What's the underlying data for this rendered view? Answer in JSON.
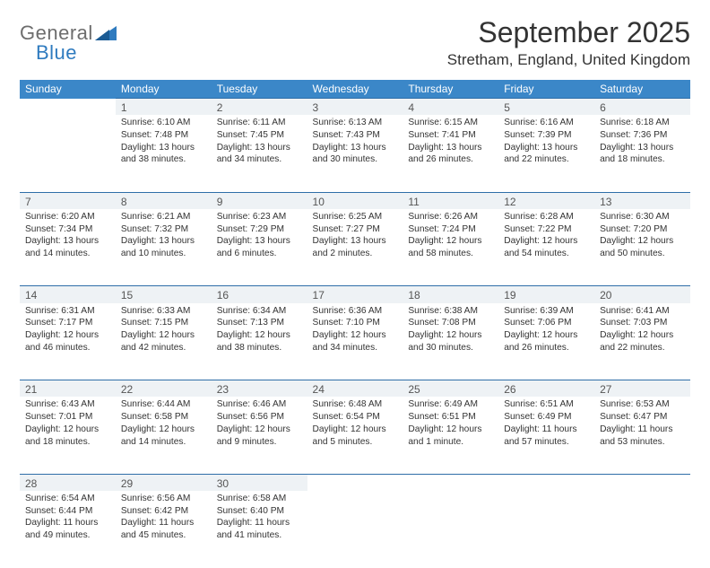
{
  "logo": {
    "text1": "General",
    "text2": "Blue"
  },
  "title": "September 2025",
  "location": "Stretham, England, United Kingdom",
  "colors": {
    "header_bg": "#3b87c8",
    "header_text": "#ffffff",
    "daynum_bg": "#eef2f5",
    "row_border": "#2f6ea8",
    "body_text": "#333333",
    "logo_gray": "#6d6d6d",
    "logo_blue": "#2f7bbf"
  },
  "weekdays": [
    "Sunday",
    "Monday",
    "Tuesday",
    "Wednesday",
    "Thursday",
    "Friday",
    "Saturday"
  ],
  "weeks": [
    [
      null,
      {
        "n": "1",
        "sr": "Sunrise: 6:10 AM",
        "ss": "Sunset: 7:48 PM",
        "d1": "Daylight: 13 hours",
        "d2": "and 38 minutes."
      },
      {
        "n": "2",
        "sr": "Sunrise: 6:11 AM",
        "ss": "Sunset: 7:45 PM",
        "d1": "Daylight: 13 hours",
        "d2": "and 34 minutes."
      },
      {
        "n": "3",
        "sr": "Sunrise: 6:13 AM",
        "ss": "Sunset: 7:43 PM",
        "d1": "Daylight: 13 hours",
        "d2": "and 30 minutes."
      },
      {
        "n": "4",
        "sr": "Sunrise: 6:15 AM",
        "ss": "Sunset: 7:41 PM",
        "d1": "Daylight: 13 hours",
        "d2": "and 26 minutes."
      },
      {
        "n": "5",
        "sr": "Sunrise: 6:16 AM",
        "ss": "Sunset: 7:39 PM",
        "d1": "Daylight: 13 hours",
        "d2": "and 22 minutes."
      },
      {
        "n": "6",
        "sr": "Sunrise: 6:18 AM",
        "ss": "Sunset: 7:36 PM",
        "d1": "Daylight: 13 hours",
        "d2": "and 18 minutes."
      }
    ],
    [
      {
        "n": "7",
        "sr": "Sunrise: 6:20 AM",
        "ss": "Sunset: 7:34 PM",
        "d1": "Daylight: 13 hours",
        "d2": "and 14 minutes."
      },
      {
        "n": "8",
        "sr": "Sunrise: 6:21 AM",
        "ss": "Sunset: 7:32 PM",
        "d1": "Daylight: 13 hours",
        "d2": "and 10 minutes."
      },
      {
        "n": "9",
        "sr": "Sunrise: 6:23 AM",
        "ss": "Sunset: 7:29 PM",
        "d1": "Daylight: 13 hours",
        "d2": "and 6 minutes."
      },
      {
        "n": "10",
        "sr": "Sunrise: 6:25 AM",
        "ss": "Sunset: 7:27 PM",
        "d1": "Daylight: 13 hours",
        "d2": "and 2 minutes."
      },
      {
        "n": "11",
        "sr": "Sunrise: 6:26 AM",
        "ss": "Sunset: 7:24 PM",
        "d1": "Daylight: 12 hours",
        "d2": "and 58 minutes."
      },
      {
        "n": "12",
        "sr": "Sunrise: 6:28 AM",
        "ss": "Sunset: 7:22 PM",
        "d1": "Daylight: 12 hours",
        "d2": "and 54 minutes."
      },
      {
        "n": "13",
        "sr": "Sunrise: 6:30 AM",
        "ss": "Sunset: 7:20 PM",
        "d1": "Daylight: 12 hours",
        "d2": "and 50 minutes."
      }
    ],
    [
      {
        "n": "14",
        "sr": "Sunrise: 6:31 AM",
        "ss": "Sunset: 7:17 PM",
        "d1": "Daylight: 12 hours",
        "d2": "and 46 minutes."
      },
      {
        "n": "15",
        "sr": "Sunrise: 6:33 AM",
        "ss": "Sunset: 7:15 PM",
        "d1": "Daylight: 12 hours",
        "d2": "and 42 minutes."
      },
      {
        "n": "16",
        "sr": "Sunrise: 6:34 AM",
        "ss": "Sunset: 7:13 PM",
        "d1": "Daylight: 12 hours",
        "d2": "and 38 minutes."
      },
      {
        "n": "17",
        "sr": "Sunrise: 6:36 AM",
        "ss": "Sunset: 7:10 PM",
        "d1": "Daylight: 12 hours",
        "d2": "and 34 minutes."
      },
      {
        "n": "18",
        "sr": "Sunrise: 6:38 AM",
        "ss": "Sunset: 7:08 PM",
        "d1": "Daylight: 12 hours",
        "d2": "and 30 minutes."
      },
      {
        "n": "19",
        "sr": "Sunrise: 6:39 AM",
        "ss": "Sunset: 7:06 PM",
        "d1": "Daylight: 12 hours",
        "d2": "and 26 minutes."
      },
      {
        "n": "20",
        "sr": "Sunrise: 6:41 AM",
        "ss": "Sunset: 7:03 PM",
        "d1": "Daylight: 12 hours",
        "d2": "and 22 minutes."
      }
    ],
    [
      {
        "n": "21",
        "sr": "Sunrise: 6:43 AM",
        "ss": "Sunset: 7:01 PM",
        "d1": "Daylight: 12 hours",
        "d2": "and 18 minutes."
      },
      {
        "n": "22",
        "sr": "Sunrise: 6:44 AM",
        "ss": "Sunset: 6:58 PM",
        "d1": "Daylight: 12 hours",
        "d2": "and 14 minutes."
      },
      {
        "n": "23",
        "sr": "Sunrise: 6:46 AM",
        "ss": "Sunset: 6:56 PM",
        "d1": "Daylight: 12 hours",
        "d2": "and 9 minutes."
      },
      {
        "n": "24",
        "sr": "Sunrise: 6:48 AM",
        "ss": "Sunset: 6:54 PM",
        "d1": "Daylight: 12 hours",
        "d2": "and 5 minutes."
      },
      {
        "n": "25",
        "sr": "Sunrise: 6:49 AM",
        "ss": "Sunset: 6:51 PM",
        "d1": "Daylight: 12 hours",
        "d2": "and 1 minute."
      },
      {
        "n": "26",
        "sr": "Sunrise: 6:51 AM",
        "ss": "Sunset: 6:49 PM",
        "d1": "Daylight: 11 hours",
        "d2": "and 57 minutes."
      },
      {
        "n": "27",
        "sr": "Sunrise: 6:53 AM",
        "ss": "Sunset: 6:47 PM",
        "d1": "Daylight: 11 hours",
        "d2": "and 53 minutes."
      }
    ],
    [
      {
        "n": "28",
        "sr": "Sunrise: 6:54 AM",
        "ss": "Sunset: 6:44 PM",
        "d1": "Daylight: 11 hours",
        "d2": "and 49 minutes."
      },
      {
        "n": "29",
        "sr": "Sunrise: 6:56 AM",
        "ss": "Sunset: 6:42 PM",
        "d1": "Daylight: 11 hours",
        "d2": "and 45 minutes."
      },
      {
        "n": "30",
        "sr": "Sunrise: 6:58 AM",
        "ss": "Sunset: 6:40 PM",
        "d1": "Daylight: 11 hours",
        "d2": "and 41 minutes."
      },
      null,
      null,
      null,
      null
    ]
  ]
}
